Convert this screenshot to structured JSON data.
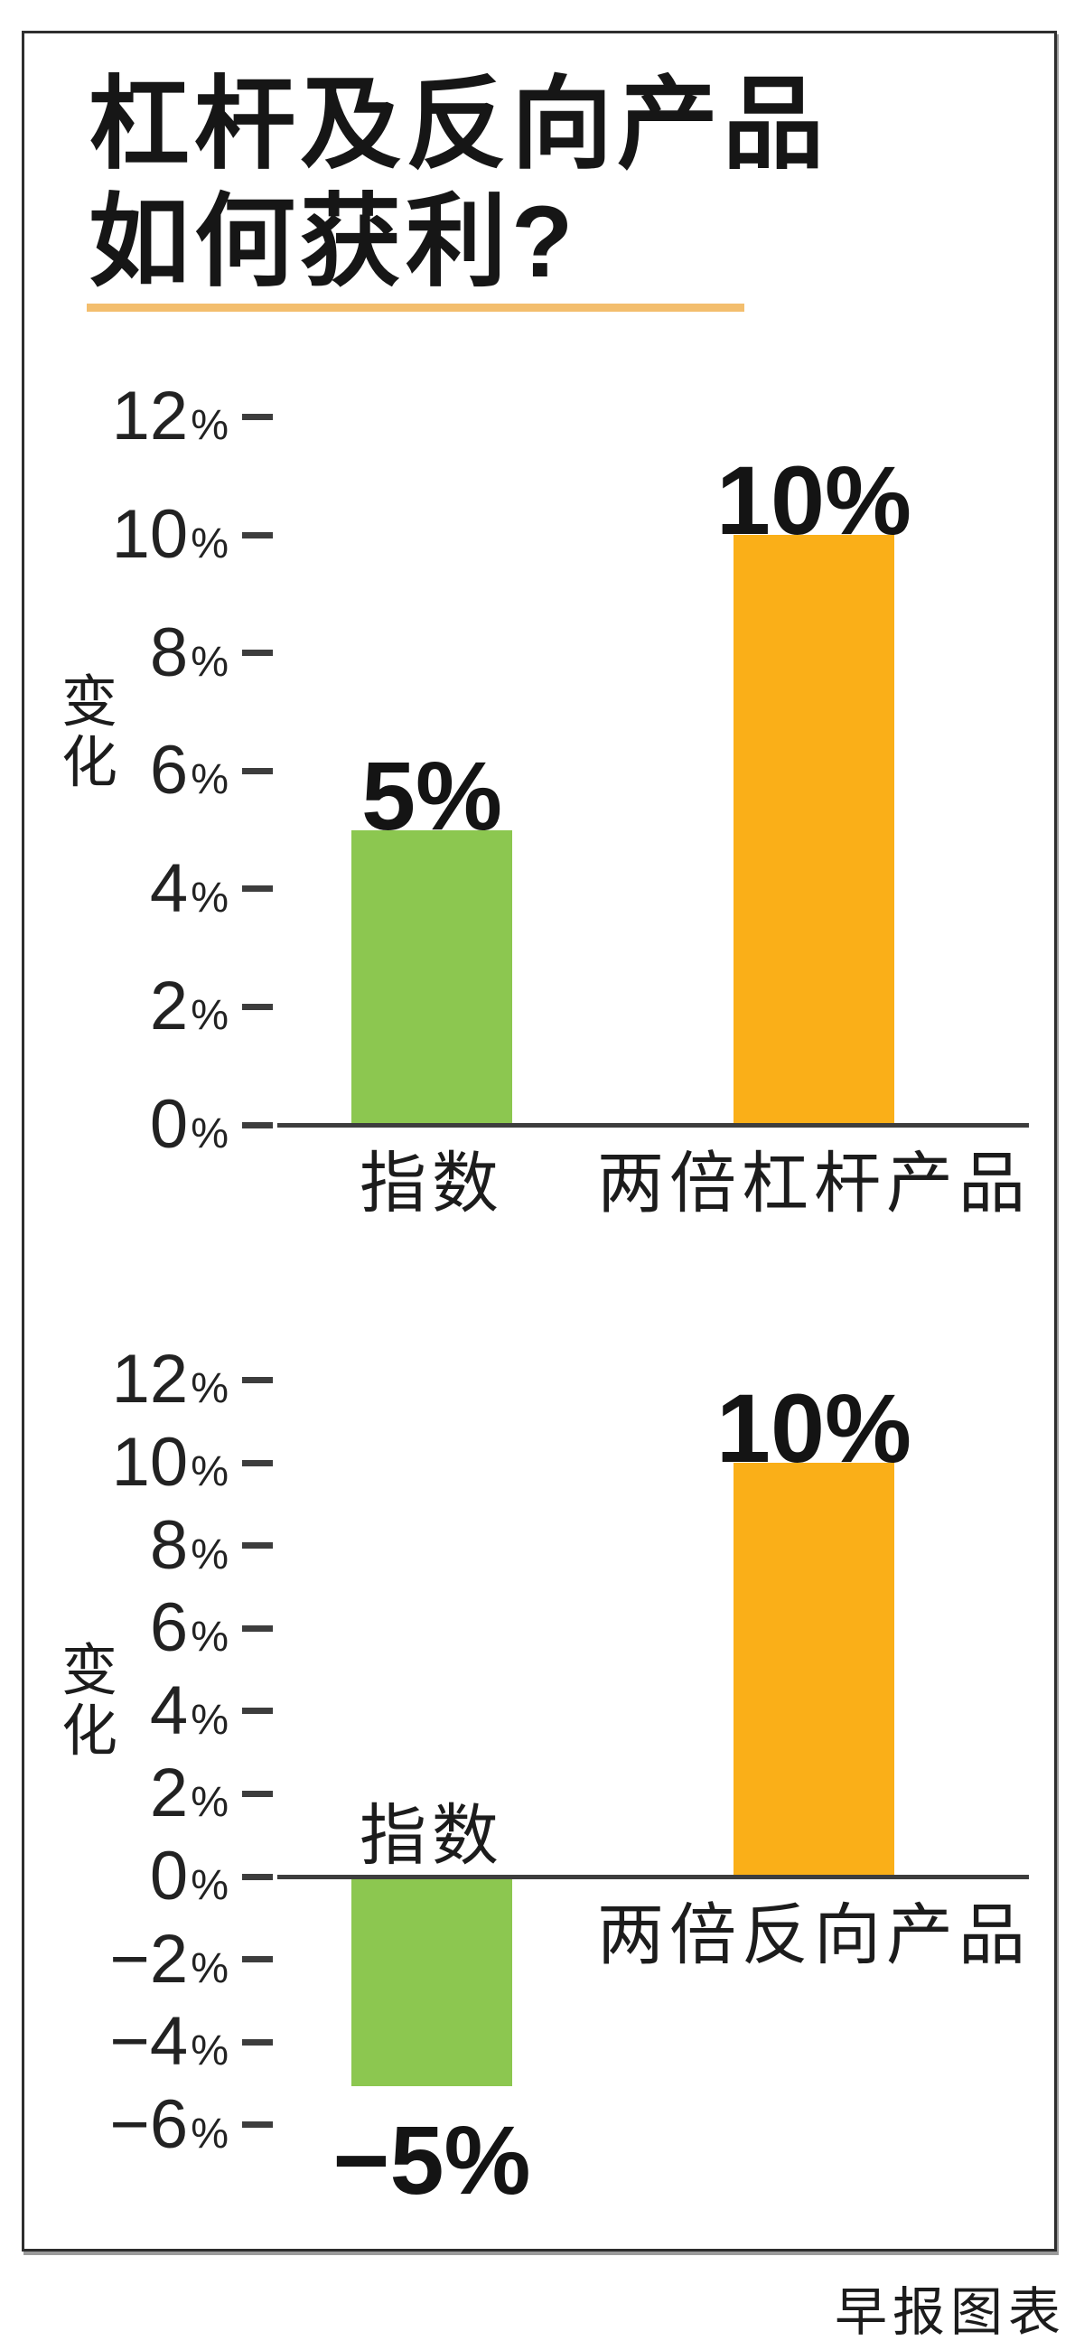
{
  "title": {
    "line1": "杠杆及反向产品",
    "line2": "如何获利?"
  },
  "footer": {
    "credit": "早报图表"
  },
  "labels": {
    "percent_suffix": "%"
  },
  "colors": {
    "green_bar": "#8CC750",
    "orange_bar": "#FAAF18",
    "underline": "#F3BE6E",
    "axis": "#3D3D3D",
    "text": "#1C1C1C"
  },
  "chart_data": [
    {
      "type": "bar",
      "title": "",
      "xlabel": "",
      "ylabel": "变化",
      "categories": [
        "指数",
        "两倍杠杆产品"
      ],
      "values": [
        5,
        10
      ],
      "bar_labels": [
        "5%",
        "10%"
      ],
      "bar_colors": [
        "#8CC750",
        "#FAAF18"
      ],
      "ylim": [
        0,
        12
      ],
      "ytick_step": 2,
      "grid": false,
      "legend": false,
      "yticks": [
        {
          "value": 12,
          "label": "12"
        },
        {
          "value": 10,
          "label": "10"
        },
        {
          "value": 8,
          "label": "8"
        },
        {
          "value": 6,
          "label": "6"
        },
        {
          "value": 4,
          "label": "4"
        },
        {
          "value": 2,
          "label": "2"
        },
        {
          "value": 0,
          "label": "0"
        }
      ]
    },
    {
      "type": "bar",
      "title": "",
      "xlabel": "",
      "ylabel": "变化",
      "categories": [
        "指数",
        "两倍反向产品"
      ],
      "values": [
        -5,
        10
      ],
      "bar_labels": [
        "−5%",
        "10%"
      ],
      "bar_colors": [
        "#8CC750",
        "#FAAF18"
      ],
      "ylim": [
        -6,
        12
      ],
      "ytick_step": 2,
      "grid": false,
      "legend": false,
      "yticks": [
        {
          "value": 12,
          "label": "12"
        },
        {
          "value": 10,
          "label": "10"
        },
        {
          "value": 8,
          "label": "8"
        },
        {
          "value": 6,
          "label": "6"
        },
        {
          "value": 4,
          "label": "4"
        },
        {
          "value": 2,
          "label": "2"
        },
        {
          "value": 0,
          "label": "0"
        },
        {
          "value": -2,
          "label": "−2"
        },
        {
          "value": -4,
          "label": "−4"
        },
        {
          "value": -6,
          "label": "−6"
        }
      ]
    }
  ]
}
